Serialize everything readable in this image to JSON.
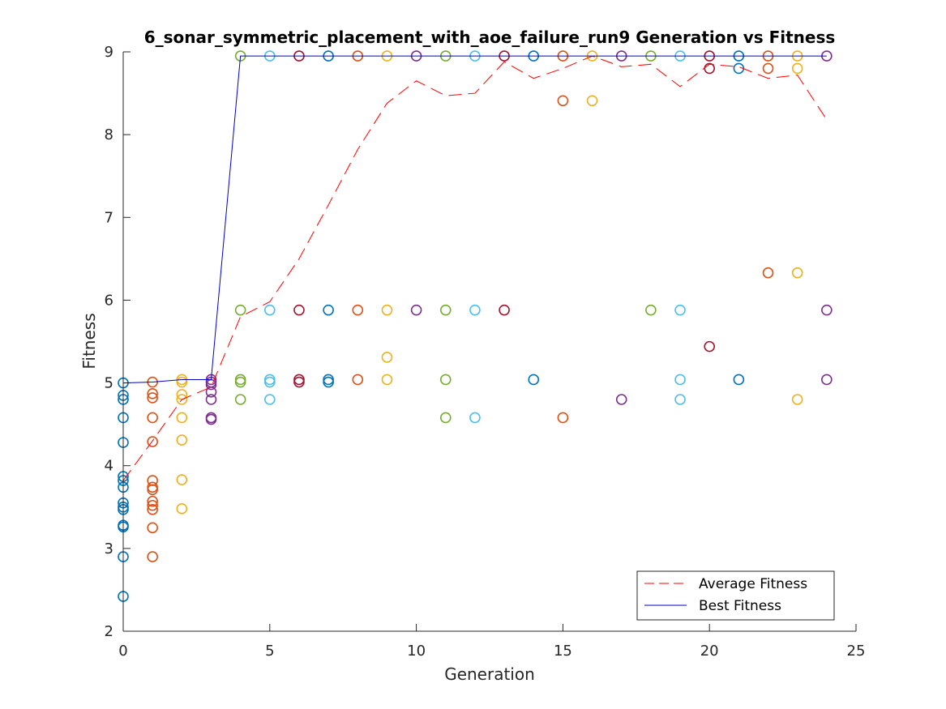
{
  "chart_data": {
    "type": "scatter",
    "title": "6_sonar_symmetric_placement_with_aoe_failure_run9 Generation vs Fitness",
    "xlabel": "Generation",
    "ylabel": "Fitness",
    "xlim": [
      0,
      25
    ],
    "ylim": [
      2,
      9
    ],
    "xticks": [
      "0",
      "5",
      "10",
      "15",
      "20",
      "25"
    ],
    "yticks": [
      "2",
      "3",
      "4",
      "5",
      "6",
      "7",
      "8",
      "9"
    ],
    "grid": false,
    "legend_position": "bottom-right",
    "generation_colors": [
      "#0072bd",
      "#d95319",
      "#edb120",
      "#7e2f8e",
      "#77ac30",
      "#4dbeee",
      "#a2142f"
    ],
    "population": [
      {
        "generation": 0,
        "values": [
          5.0,
          4.85,
          4.8,
          4.58,
          4.28,
          3.87,
          3.82,
          3.74,
          3.55,
          3.5,
          3.47,
          3.28,
          3.26,
          2.9,
          2.42
        ]
      },
      {
        "generation": 1,
        "values": [
          5.01,
          4.87,
          4.82,
          4.58,
          4.29,
          3.82,
          3.74,
          3.71,
          3.57,
          3.52,
          3.47,
          3.25,
          2.9
        ]
      },
      {
        "generation": 2,
        "values": [
          5.04,
          5.01,
          4.86,
          4.8,
          4.58,
          4.31,
          3.83,
          3.48
        ]
      },
      {
        "generation": 3,
        "values": [
          5.04,
          5.01,
          4.98,
          4.89,
          4.8,
          4.58,
          4.56
        ]
      },
      {
        "generation": 4,
        "values": [
          8.95,
          5.88,
          5.04,
          5.01,
          4.8
        ]
      },
      {
        "generation": 5,
        "values": [
          8.95,
          5.88,
          5.04,
          5.01,
          4.8
        ]
      },
      {
        "generation": 6,
        "values": [
          8.95,
          5.88,
          5.04,
          5.01
        ]
      },
      {
        "generation": 7,
        "values": [
          8.95,
          5.88,
          5.04,
          5.01
        ]
      },
      {
        "generation": 8,
        "values": [
          8.95,
          5.88,
          5.04
        ]
      },
      {
        "generation": 9,
        "values": [
          8.95,
          5.88,
          5.31,
          5.04
        ]
      },
      {
        "generation": 10,
        "values": [
          8.95,
          5.88
        ]
      },
      {
        "generation": 11,
        "values": [
          8.95,
          5.88,
          5.04,
          4.58
        ]
      },
      {
        "generation": 12,
        "values": [
          8.95,
          5.88,
          4.58
        ]
      },
      {
        "generation": 13,
        "values": [
          8.95,
          5.88
        ]
      },
      {
        "generation": 14,
        "values": [
          8.95,
          5.04
        ]
      },
      {
        "generation": 15,
        "values": [
          8.95,
          8.41,
          4.58
        ]
      },
      {
        "generation": 16,
        "values": [
          8.95,
          8.41
        ]
      },
      {
        "generation": 17,
        "values": [
          8.95,
          4.8
        ]
      },
      {
        "generation": 18,
        "values": [
          8.95,
          5.88
        ]
      },
      {
        "generation": 19,
        "values": [
          8.95,
          5.88,
          5.04,
          4.8
        ]
      },
      {
        "generation": 20,
        "values": [
          8.95,
          8.8,
          5.44
        ]
      },
      {
        "generation": 21,
        "values": [
          8.95,
          8.8,
          5.04
        ]
      },
      {
        "generation": 22,
        "values": [
          8.95,
          8.8,
          6.33
        ]
      },
      {
        "generation": 23,
        "values": [
          8.95,
          8.8,
          6.33,
          4.8
        ]
      },
      {
        "generation": 24,
        "values": [
          8.95,
          5.88,
          5.04
        ]
      }
    ],
    "series": [
      {
        "name": "Average Fitness",
        "color": "#ff0000",
        "style": "dashed",
        "x": [
          0,
          1,
          2,
          3,
          4,
          5,
          6,
          7,
          8,
          9,
          10,
          11,
          12,
          13,
          14,
          15,
          16,
          17,
          18,
          19,
          20,
          21,
          22,
          23,
          24
        ],
        "y": [
          3.82,
          4.3,
          4.8,
          4.95,
          5.8,
          5.98,
          6.5,
          7.15,
          7.82,
          8.38,
          8.65,
          8.47,
          8.5,
          8.88,
          8.68,
          8.8,
          8.95,
          8.82,
          8.85,
          8.58,
          8.85,
          8.82,
          8.68,
          8.72,
          8.18
        ]
      },
      {
        "name": "Best Fitness",
        "color": "#0000cc",
        "style": "solid",
        "x": [
          0,
          1,
          2,
          3,
          4,
          5,
          6,
          7,
          8,
          9,
          10,
          11,
          12,
          13,
          14,
          15,
          16,
          17,
          18,
          19,
          20,
          21,
          22,
          23,
          24
        ],
        "y": [
          5.0,
          5.01,
          5.04,
          5.04,
          8.95,
          8.95,
          8.95,
          8.95,
          8.95,
          8.95,
          8.95,
          8.95,
          8.95,
          8.95,
          8.95,
          8.95,
          8.95,
          8.95,
          8.95,
          8.95,
          8.95,
          8.95,
          8.95,
          8.95,
          8.95
        ]
      }
    ]
  }
}
